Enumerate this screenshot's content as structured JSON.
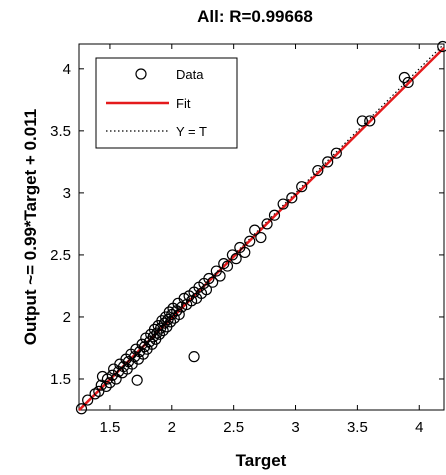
{
  "chart_data": {
    "type": "scatter",
    "title": "All: R=0.99668",
    "xlabel": "Target",
    "ylabel": "Output ~= 0.99*Target + 0.011",
    "xlim": [
      1.25,
      4.2
    ],
    "ylim": [
      1.25,
      4.2
    ],
    "xticks": [
      "1.5",
      "2",
      "2.5",
      "3",
      "3.5",
      "4"
    ],
    "yticks": [
      "1.5",
      "2",
      "2.5",
      "3",
      "3.5",
      "4"
    ],
    "grid": false,
    "legend_position": "top-left",
    "legend": {
      "data_label": "Data",
      "fit_label": "Fit",
      "yt_label": "Y = T"
    },
    "fit": {
      "slope": 0.99,
      "intercept": 0.011,
      "color": "#e41a1c"
    },
    "identity_line_color": "#000000",
    "marker_color": "#000000",
    "points": [
      [
        1.27,
        1.26
      ],
      [
        1.32,
        1.33
      ],
      [
        1.38,
        1.38
      ],
      [
        1.41,
        1.4
      ],
      [
        1.43,
        1.45
      ],
      [
        1.44,
        1.52
      ],
      [
        1.47,
        1.44
      ],
      [
        1.48,
        1.5
      ],
      [
        1.5,
        1.47
      ],
      [
        1.52,
        1.53
      ],
      [
        1.53,
        1.58
      ],
      [
        1.55,
        1.5
      ],
      [
        1.57,
        1.56
      ],
      [
        1.58,
        1.62
      ],
      [
        1.6,
        1.55
      ],
      [
        1.61,
        1.6
      ],
      [
        1.63,
        1.66
      ],
      [
        1.64,
        1.58
      ],
      [
        1.65,
        1.64
      ],
      [
        1.67,
        1.7
      ],
      [
        1.68,
        1.62
      ],
      [
        1.7,
        1.68
      ],
      [
        1.71,
        1.74
      ],
      [
        1.72,
        1.49
      ],
      [
        1.73,
        1.66
      ],
      [
        1.74,
        1.72
      ],
      [
        1.76,
        1.78
      ],
      [
        1.77,
        1.7
      ],
      [
        1.78,
        1.76
      ],
      [
        1.79,
        1.83
      ],
      [
        1.8,
        1.74
      ],
      [
        1.82,
        1.8
      ],
      [
        1.83,
        1.86
      ],
      [
        1.84,
        1.78
      ],
      [
        1.85,
        1.84
      ],
      [
        1.86,
        1.9
      ],
      [
        1.87,
        1.82
      ],
      [
        1.88,
        1.87
      ],
      [
        1.89,
        1.93
      ],
      [
        1.9,
        1.86
      ],
      [
        1.91,
        1.91
      ],
      [
        1.92,
        1.97
      ],
      [
        1.93,
        1.89
      ],
      [
        1.94,
        1.95
      ],
      [
        1.95,
        2.0
      ],
      [
        1.96,
        1.92
      ],
      [
        1.97,
        1.98
      ],
      [
        1.98,
        2.04
      ],
      [
        1.99,
        1.96
      ],
      [
        2.0,
        2.02
      ],
      [
        2.01,
        2.07
      ],
      [
        2.02,
        1.99
      ],
      [
        2.04,
        2.05
      ],
      [
        2.05,
        2.11
      ],
      [
        2.06,
        2.02
      ],
      [
        2.08,
        2.08
      ],
      [
        2.1,
        2.15
      ],
      [
        2.12,
        2.1
      ],
      [
        2.14,
        2.17
      ],
      [
        2.16,
        2.13
      ],
      [
        2.18,
        1.68
      ],
      [
        2.18,
        2.2
      ],
      [
        2.2,
        2.15
      ],
      [
        2.22,
        2.24
      ],
      [
        2.24,
        2.19
      ],
      [
        2.26,
        2.27
      ],
      [
        2.28,
        2.22
      ],
      [
        2.3,
        2.31
      ],
      [
        2.33,
        2.28
      ],
      [
        2.36,
        2.37
      ],
      [
        2.39,
        2.33
      ],
      [
        2.42,
        2.43
      ],
      [
        2.45,
        2.41
      ],
      [
        2.49,
        2.5
      ],
      [
        2.52,
        2.47
      ],
      [
        2.55,
        2.56
      ],
      [
        2.59,
        2.52
      ],
      [
        2.63,
        2.61
      ],
      [
        2.67,
        2.7
      ],
      [
        2.72,
        2.64
      ],
      [
        2.77,
        2.75
      ],
      [
        2.83,
        2.82
      ],
      [
        2.9,
        2.91
      ],
      [
        2.97,
        2.96
      ],
      [
        3.05,
        3.05
      ],
      [
        3.18,
        3.18
      ],
      [
        3.26,
        3.25
      ],
      [
        3.33,
        3.32
      ],
      [
        3.54,
        3.58
      ],
      [
        3.6,
        3.58
      ],
      [
        3.88,
        3.93
      ],
      [
        3.91,
        3.89
      ],
      [
        4.19,
        4.18
      ]
    ]
  }
}
